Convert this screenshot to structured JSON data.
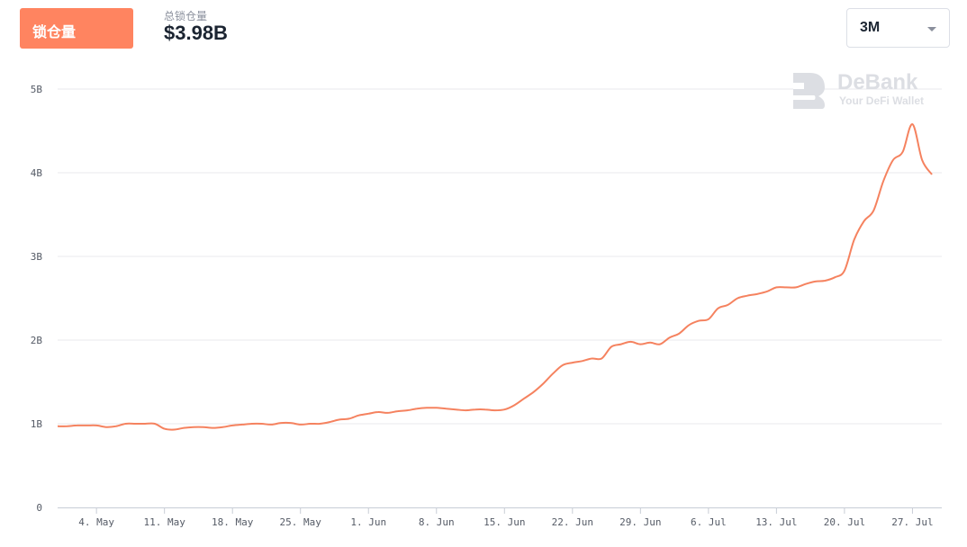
{
  "header": {
    "tab_label": "锁仓量",
    "tvl_caption": "总锁仓量",
    "tvl_value": "$3.98B",
    "range_value": "3M"
  },
  "watermark": {
    "name": "DeBank",
    "tagline": "Your DeFi Wallet"
  },
  "colors": {
    "accent": "#ff8460",
    "line": "#f5825f",
    "grid": "#e8eaee"
  },
  "icons": {
    "logo": "debank-logo-icon",
    "caret": "caret-down-icon"
  },
  "chart_data": {
    "type": "line",
    "title": "",
    "xlabel": "",
    "ylabel": "",
    "ylim": [
      0,
      5
    ],
    "y_ticks": [
      {
        "value": 0,
        "label": "0"
      },
      {
        "value": 1,
        "label": "1B"
      },
      {
        "value": 2,
        "label": "2B"
      },
      {
        "value": 3,
        "label": "3B"
      },
      {
        "value": 4,
        "label": "4B"
      },
      {
        "value": 5,
        "label": "5B"
      }
    ],
    "x_ticks": [
      {
        "date": "2021-05-04",
        "label": "4. May"
      },
      {
        "date": "2021-05-11",
        "label": "11. May"
      },
      {
        "date": "2021-05-18",
        "label": "18. May"
      },
      {
        "date": "2021-05-25",
        "label": "25. May"
      },
      {
        "date": "2021-06-01",
        "label": "1. Jun"
      },
      {
        "date": "2021-06-08",
        "label": "8. Jun"
      },
      {
        "date": "2021-06-15",
        "label": "15. Jun"
      },
      {
        "date": "2021-06-22",
        "label": "22. Jun"
      },
      {
        "date": "2021-06-29",
        "label": "29. Jun"
      },
      {
        "date": "2021-07-06",
        "label": "6. Jul"
      },
      {
        "date": "2021-07-13",
        "label": "13. Jul"
      },
      {
        "date": "2021-07-20",
        "label": "20. Jul"
      },
      {
        "date": "2021-07-27",
        "label": "27. Jul"
      }
    ],
    "grid": true,
    "legend": "none",
    "series": [
      {
        "x": [
          "2021-04-30",
          "2021-05-01",
          "2021-05-02",
          "2021-05-03",
          "2021-05-04",
          "2021-05-05",
          "2021-05-06",
          "2021-05-07",
          "2021-05-08",
          "2021-05-09",
          "2021-05-10",
          "2021-05-11",
          "2021-05-12",
          "2021-05-13",
          "2021-05-14",
          "2021-05-15",
          "2021-05-16",
          "2021-05-17",
          "2021-05-18",
          "2021-05-19",
          "2021-05-20",
          "2021-05-21",
          "2021-05-22",
          "2021-05-23",
          "2021-05-24",
          "2021-05-25",
          "2021-05-26",
          "2021-05-27",
          "2021-05-28",
          "2021-05-29",
          "2021-05-30",
          "2021-05-31",
          "2021-06-01",
          "2021-06-02",
          "2021-06-03",
          "2021-06-04",
          "2021-06-05",
          "2021-06-06",
          "2021-06-07",
          "2021-06-08",
          "2021-06-09",
          "2021-06-10",
          "2021-06-11",
          "2021-06-12",
          "2021-06-13",
          "2021-06-14",
          "2021-06-15",
          "2021-06-16",
          "2021-06-17",
          "2021-06-18",
          "2021-06-19",
          "2021-06-20",
          "2021-06-21",
          "2021-06-22",
          "2021-06-23",
          "2021-06-24",
          "2021-06-25",
          "2021-06-26",
          "2021-06-27",
          "2021-06-28",
          "2021-06-29",
          "2021-06-30",
          "2021-07-01",
          "2021-07-02",
          "2021-07-03",
          "2021-07-04",
          "2021-07-05",
          "2021-07-06",
          "2021-07-07",
          "2021-07-08",
          "2021-07-09",
          "2021-07-10",
          "2021-07-11",
          "2021-07-12",
          "2021-07-13",
          "2021-07-14",
          "2021-07-15",
          "2021-07-16",
          "2021-07-17",
          "2021-07-18",
          "2021-07-19",
          "2021-07-20",
          "2021-07-21",
          "2021-07-22",
          "2021-07-23",
          "2021-07-24",
          "2021-07-25",
          "2021-07-26",
          "2021-07-27",
          "2021-07-28",
          "2021-07-29"
        ],
        "y": [
          0.97,
          0.97,
          0.98,
          0.98,
          0.98,
          0.96,
          0.97,
          1.0,
          1.0,
          1.0,
          1.0,
          0.94,
          0.93,
          0.95,
          0.96,
          0.96,
          0.95,
          0.96,
          0.98,
          0.99,
          1.0,
          1.0,
          0.99,
          1.01,
          1.01,
          0.99,
          1.0,
          1.0,
          1.02,
          1.05,
          1.06,
          1.1,
          1.12,
          1.14,
          1.13,
          1.15,
          1.16,
          1.18,
          1.19,
          1.19,
          1.18,
          1.17,
          1.16,
          1.17,
          1.17,
          1.16,
          1.17,
          1.22,
          1.3,
          1.38,
          1.48,
          1.6,
          1.7,
          1.73,
          1.75,
          1.78,
          1.78,
          1.92,
          1.95,
          1.98,
          1.95,
          1.97,
          1.95,
          2.03,
          2.08,
          2.18,
          2.23,
          2.25,
          2.38,
          2.42,
          2.5,
          2.53,
          2.55,
          2.58,
          2.63,
          2.63,
          2.63,
          2.67,
          2.7,
          2.71,
          2.75,
          2.83,
          3.2,
          3.42,
          3.55,
          3.9,
          4.15,
          4.25,
          4.58,
          4.15,
          3.98
        ]
      }
    ]
  }
}
